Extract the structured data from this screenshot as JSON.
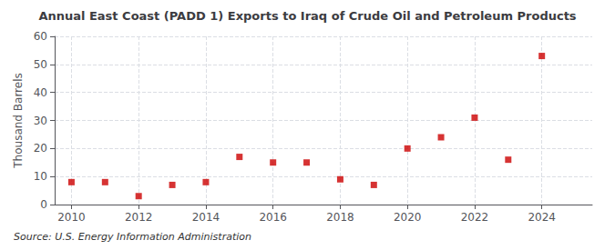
{
  "chart_data": {
    "type": "scatter",
    "title": "Annual East Coast (PADD 1) Exports to Iraq of Crude Oil and Petroleum Products",
    "ylabel": "Thousand Barrels",
    "annotation": "Source: U.S. Energy Information Administration",
    "x": [
      2010,
      2011,
      2012,
      2013,
      2014,
      2015,
      2016,
      2017,
      2018,
      2019,
      2020,
      2021,
      2022,
      2023,
      2024
    ],
    "values": [
      8,
      8,
      3,
      7,
      8,
      17,
      15,
      15,
      9,
      7,
      20,
      24,
      31,
      16,
      53
    ],
    "color": "#cc0000",
    "marker": "square",
    "xlim": [
      2009.5,
      2025.5
    ],
    "xticks": [
      2010,
      2012,
      2014,
      2016,
      2018,
      2020,
      2022,
      2024
    ],
    "ylim": [
      0,
      60
    ],
    "yticks": [
      0,
      10,
      20,
      30,
      40,
      50,
      60
    ],
    "grid": true
  }
}
